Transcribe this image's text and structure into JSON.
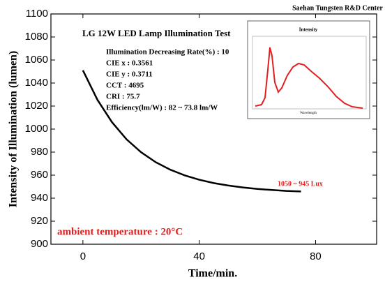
{
  "chart_data": {
    "type": "line",
    "title": "LG 12W LED Lamp Illumination Test",
    "header": "Saehan Tungsten R&D Center",
    "x_label": "Time/min.",
    "y_label": "Intensity of Illumination (lumen)",
    "annotations": [
      "Illumination Decreasing Rate(%) : 10",
      "CIE x : 0.3561",
      "CIE y : 0.3711",
      "CCT : 4695",
      "CRI : 75.7",
      "Efficiency(lm/W) : 82 ~ 73.8 lm/W"
    ],
    "range_note": "1050 ~ 945 Lux",
    "temperature_note": "ambient temperature : 20°C",
    "inset": {
      "title": "Intensity",
      "x_label": "Wavelength"
    },
    "x": [
      0,
      5,
      10,
      15,
      20,
      25,
      30,
      35,
      40,
      45,
      50,
      55,
      60,
      65,
      70,
      75
    ],
    "values": [
      1051,
      1025.4,
      1006.0,
      991.1,
      979.9,
      971.3,
      964.8,
      959.8,
      956.0,
      953.1,
      951.0,
      949.3,
      948.0,
      947.1,
      946.3,
      945.8
    ],
    "color": "#000000",
    "xlim": [
      -11,
      101
    ],
    "xticks": [
      0,
      40,
      80
    ],
    "ylim": [
      900,
      1100
    ],
    "yticks": [
      900,
      920,
      940,
      960,
      980,
      1000,
      1020,
      1040,
      1060,
      1080,
      1100
    ]
  }
}
